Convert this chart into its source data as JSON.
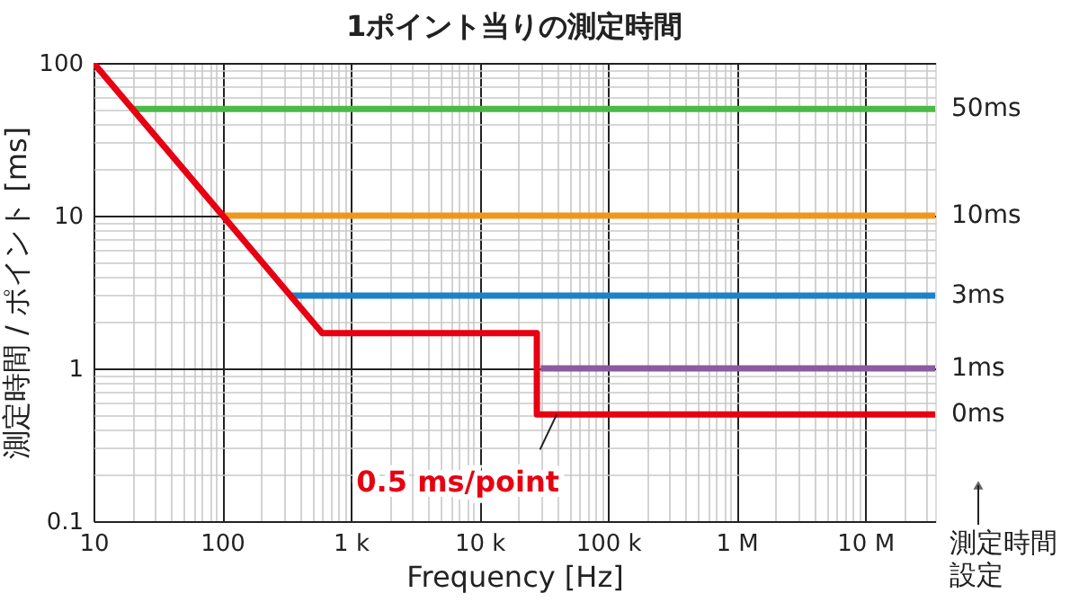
{
  "chart_data": {
    "type": "line",
    "title": "1ポイント当りの測定時間",
    "xlabel": "Frequency [Hz]",
    "ylabel": "測定時間 / ポイント [ms]",
    "log": "xy",
    "grid": true,
    "legend": false,
    "line_style": "solid",
    "marker": "none",
    "xlim": [
      10,
      35000000
    ],
    "ylim": [
      0.1,
      100
    ],
    "xticks": [
      10,
      {
        "value": 20,
        "label": null
      },
      {
        "value": 30,
        "label": null
      },
      {
        "value": 40,
        "label": null
      },
      {
        "value": 50,
        "label": null
      },
      {
        "value": 60,
        "label": null
      },
      {
        "value": 70,
        "label": null
      },
      {
        "value": 80,
        "label": null
      },
      {
        "value": 90,
        "label": null
      },
      100,
      {
        "value": 200,
        "label": null
      },
      {
        "value": 300,
        "label": null
      },
      {
        "value": 400,
        "label": null
      },
      {
        "value": 500,
        "label": null
      },
      {
        "value": 600,
        "label": null
      },
      {
        "value": 700,
        "label": null
      },
      {
        "value": 800,
        "label": null
      },
      {
        "value": 900,
        "label": null
      },
      {
        "value": 1000,
        "label": "1 k"
      },
      {
        "value": 2000,
        "label": null
      },
      {
        "value": 3000,
        "label": null
      },
      {
        "value": 4000,
        "label": null
      },
      {
        "value": 5000,
        "label": null
      },
      {
        "value": 6000,
        "label": null
      },
      {
        "value": 7000,
        "label": null
      },
      {
        "value": 8000,
        "label": null
      },
      {
        "value": 9000,
        "label": null
      },
      {
        "value": 10000,
        "label": "10 k"
      },
      {
        "value": 20000,
        "label": null
      },
      {
        "value": 30000,
        "label": null
      },
      {
        "value": 40000,
        "label": null
      },
      {
        "value": 50000,
        "label": null
      },
      {
        "value": 60000,
        "label": null
      },
      {
        "value": 70000,
        "label": null
      },
      {
        "value": 80000,
        "label": null
      },
      {
        "value": 90000,
        "label": null
      },
      {
        "value": 100000,
        "label": "100 k"
      },
      {
        "value": 200000,
        "label": null
      },
      {
        "value": 300000,
        "label": null
      },
      {
        "value": 400000,
        "label": null
      },
      {
        "value": 500000,
        "label": null
      },
      {
        "value": 600000,
        "label": null
      },
      {
        "value": 700000,
        "label": null
      },
      {
        "value": 800000,
        "label": null
      },
      {
        "value": 900000,
        "label": null
      },
      {
        "value": 1000000,
        "label": "1 M"
      },
      {
        "value": 2000000,
        "label": null
      },
      {
        "value": 3000000,
        "label": null
      },
      {
        "value": 4000000,
        "label": null
      },
      {
        "value": 5000000,
        "label": null
      },
      {
        "value": 6000000,
        "label": null
      },
      {
        "value": 7000000,
        "label": null
      },
      {
        "value": 8000000,
        "label": null
      },
      {
        "value": 9000000,
        "label": null
      },
      {
        "value": 10000000,
        "label": "10 M"
      },
      {
        "value": 20000000,
        "label": null
      },
      {
        "value": 30000000,
        "label": null
      }
    ],
    "yticks": [
      0.1,
      {
        "value": 0.2,
        "label": null
      },
      {
        "value": 0.3,
        "label": null
      },
      {
        "value": 0.4,
        "label": null
      },
      {
        "value": 0.5,
        "label": null
      },
      {
        "value": 0.6,
        "label": null
      },
      {
        "value": 0.7,
        "label": null
      },
      {
        "value": 0.8,
        "label": null
      },
      {
        "value": 0.9,
        "label": null
      },
      1,
      {
        "value": 2,
        "label": null
      },
      {
        "value": 3,
        "label": null
      },
      {
        "value": 4,
        "label": null
      },
      {
        "value": 5,
        "label": null
      },
      {
        "value": 6,
        "label": null
      },
      {
        "value": 7,
        "label": null
      },
      {
        "value": 8,
        "label": null
      },
      {
        "value": 9,
        "label": null
      },
      10,
      {
        "value": 20,
        "label": null
      },
      {
        "value": 30,
        "label": null
      },
      {
        "value": 40,
        "label": null
      },
      {
        "value": 50,
        "label": null
      },
      {
        "value": 60,
        "label": null
      },
      {
        "value": 70,
        "label": null
      },
      {
        "value": 80,
        "label": null
      },
      {
        "value": 90,
        "label": null
      },
      100
    ],
    "series": [
      {
        "name": "50ms",
        "color": "#4cb848",
        "x": [
          20,
          35000000
        ],
        "values": [
          50,
          50
        ]
      },
      {
        "name": "10ms",
        "color": "#f0961e",
        "x": [
          100,
          35000000
        ],
        "values": [
          10,
          10
        ]
      },
      {
        "name": "3ms",
        "color": "#1e82c8",
        "x": [
          333,
          35000000
        ],
        "values": [
          3,
          3
        ]
      },
      {
        "name": "1ms",
        "color": "#8c5aa0",
        "x": [
          30000,
          35000000
        ],
        "values": [
          1,
          1
        ]
      },
      {
        "name": "0ms",
        "color": "#e60012",
        "x": [
          10,
          600,
          28000,
          28000,
          35000000
        ],
        "values": [
          100,
          1.7,
          1.7,
          0.5,
          0.5
        ]
      }
    ],
    "annotations": [
      {
        "text": "0.5 ms/point",
        "x": 40000,
        "y": 0.5
      },
      "測定時間設定"
    ]
  }
}
